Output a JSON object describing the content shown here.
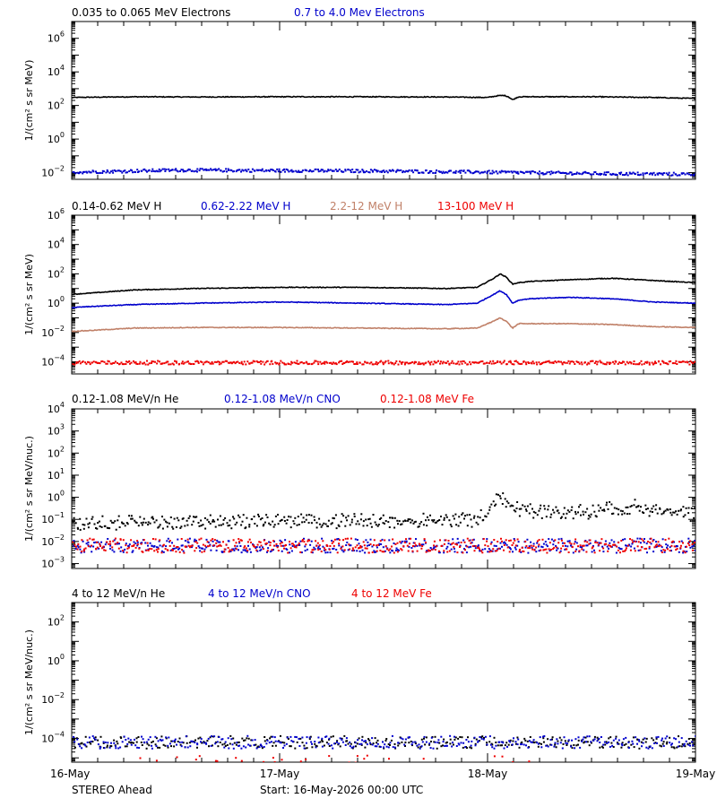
{
  "footer": {
    "spacecraft": "STEREO Ahead",
    "start": "Start: 16-May-2026 00:00 UTC"
  },
  "x_axis": {
    "ticks": [
      "16-May",
      "17-May",
      "18-May",
      "19-May"
    ]
  },
  "chart_data": [
    {
      "type": "scatter",
      "yscale": "log",
      "ylabel": "1/(cm² s sr MeV)",
      "ylim": [
        0.004,
        10000000
      ],
      "tick_exponents": [
        -2,
        0,
        2,
        4,
        6
      ],
      "series": [
        {
          "name": "0.035 to 0.065 MeV Electrons",
          "color": "#000000",
          "style": "line",
          "x": [
            0,
            0.3,
            0.6,
            1.0,
            1.4,
            1.8,
            2.0,
            2.05,
            2.08,
            2.1,
            2.12,
            2.15,
            2.2,
            2.5,
            2.8,
            3.0
          ],
          "y": [
            300,
            330,
            320,
            330,
            330,
            320,
            300,
            380,
            400,
            330,
            220,
            330,
            330,
            330,
            300,
            260
          ]
        },
        {
          "name": "0.7 to 4.0 Mev Electrons",
          "color": "#0000cc",
          "style": "dots",
          "x": [
            0,
            0.5,
            1.0,
            1.5,
            2.0,
            2.5,
            3.0
          ],
          "y": [
            0.012,
            0.016,
            0.015,
            0.014,
            0.012,
            0.01,
            0.009
          ]
        }
      ]
    },
    {
      "type": "scatter",
      "yscale": "log",
      "ylabel": "1/(cm² s sr MeV)",
      "ylim": [
        1.5e-05,
        1000000
      ],
      "tick_exponents": [
        -4,
        -2,
        0,
        2,
        4,
        6
      ],
      "series": [
        {
          "name": "0.14-0.62 MeV H",
          "color": "#000000",
          "style": "line",
          "x": [
            0,
            0.1,
            0.3,
            0.6,
            1.0,
            1.4,
            1.8,
            1.95,
            2.03,
            2.06,
            2.09,
            2.12,
            2.15,
            2.2,
            2.4,
            2.6,
            2.8,
            3.0
          ],
          "y": [
            4,
            5,
            8,
            10,
            12,
            12,
            10,
            12,
            50,
            100,
            60,
            20,
            25,
            30,
            40,
            50,
            35,
            25
          ]
        },
        {
          "name": "0.62-2.22 MeV H",
          "color": "#0000cc",
          "style": "line",
          "x": [
            0,
            0.1,
            0.3,
            0.6,
            1.0,
            1.4,
            1.8,
            1.95,
            2.03,
            2.06,
            2.09,
            2.12,
            2.15,
            2.2,
            2.4,
            2.6,
            2.8,
            3.0
          ],
          "y": [
            0.5,
            0.6,
            0.8,
            1.0,
            1.2,
            1.0,
            0.8,
            1.0,
            4,
            7,
            4,
            1,
            1.6,
            2,
            2.5,
            2,
            1.2,
            1.0
          ]
        },
        {
          "name": "2.2-12 MeV H",
          "color": "#c08068",
          "style": "line",
          "x": [
            0,
            0.1,
            0.3,
            0.6,
            1.0,
            1.4,
            1.8,
            1.95,
            2.03,
            2.06,
            2.09,
            2.12,
            2.15,
            2.2,
            2.4,
            2.6,
            2.8,
            3.0
          ],
          "y": [
            0.012,
            0.014,
            0.02,
            0.022,
            0.022,
            0.02,
            0.018,
            0.02,
            0.06,
            0.1,
            0.06,
            0.02,
            0.04,
            0.04,
            0.04,
            0.035,
            0.025,
            0.022
          ]
        },
        {
          "name": "13-100 MeV H",
          "color": "#ee0000",
          "style": "dots",
          "x": [
            0,
            0.5,
            1.0,
            1.5,
            2.0,
            2.5,
            3.0
          ],
          "y": [
            0.0001,
            0.0001,
            0.0001,
            0.0001,
            0.0001,
            0.0001,
            0.0001
          ]
        }
      ]
    },
    {
      "type": "scatter",
      "yscale": "log",
      "ylabel": "1/(cm² s sr MeV/nuc.)",
      "ylim": [
        0.0006,
        10000
      ],
      "tick_exponents": [
        -3,
        -2,
        -1,
        0,
        1,
        2,
        3,
        4
      ],
      "series": [
        {
          "name": "0.12-1.08 MeV/n He",
          "color": "#000000",
          "style": "dots",
          "x": [
            0,
            0.5,
            1.0,
            1.5,
            1.95,
            2.05,
            2.1,
            2.15,
            2.3,
            2.5,
            2.6,
            2.7,
            2.9,
            3.0
          ],
          "y": [
            0.1,
            0.12,
            0.13,
            0.13,
            0.15,
            1.5,
            0.8,
            0.4,
            0.3,
            0.35,
            0.5,
            0.6,
            0.3,
            0.25
          ]
        },
        {
          "name": "0.12-1.08 MeV/n CNO",
          "color": "#0000cc",
          "style": "dots",
          "x": [
            0,
            0.5,
            1.0,
            1.5,
            2.0,
            2.5,
            3.0
          ],
          "y": [
            0.01,
            0.01,
            0.01,
            0.01,
            0.01,
            0.01,
            0.01
          ]
        },
        {
          "name": "0.12-1.08 MeV Fe",
          "color": "#ee0000",
          "style": "dots",
          "x": [
            0,
            0.5,
            1.0,
            1.5,
            2.0,
            2.5,
            3.0
          ],
          "y": [
            0.01,
            0.01,
            0.01,
            0.01,
            0.01,
            0.01,
            0.01
          ]
        }
      ]
    },
    {
      "type": "scatter",
      "yscale": "log",
      "ylabel": "1/(cm² s sr MeV/nuc.)",
      "ylim": [
        6e-06,
        1000
      ],
      "tick_exponents": [
        -4,
        -2,
        0,
        2
      ],
      "series": [
        {
          "name": "4 to 12 MeV/n He",
          "color": "#000000",
          "style": "dots",
          "x": [
            0,
            0.5,
            1.0,
            1.5,
            2.0,
            2.5,
            3.0
          ],
          "y": [
            0.0001,
            0.0001,
            0.0001,
            0.0001,
            0.0001,
            0.0001,
            0.0001
          ]
        },
        {
          "name": "4 to 12 MeV/n CNO",
          "color": "#0000cc",
          "style": "dots",
          "x": [
            0,
            1.0,
            2.0,
            3.0
          ],
          "y": [
            0.0001,
            0.0001,
            0.0001,
            0.0001
          ]
        },
        {
          "name": "4 to 12 MeV Fe",
          "color": "#ee0000",
          "style": "dots",
          "x": [
            0.3,
            0.6,
            1.3,
            1.6,
            2.2
          ],
          "y": [
            1e-05,
            1e-05,
            1e-05,
            1e-05,
            1e-05
          ]
        }
      ]
    }
  ]
}
